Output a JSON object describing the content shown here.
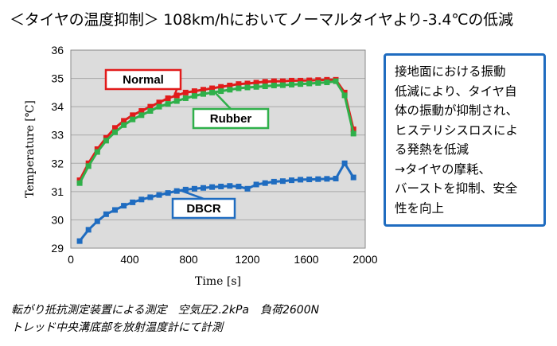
{
  "title": "＜タイヤの温度抑制＞ 108km/hにおいてノーマルタイヤより-3.4℃の低減",
  "note_lines": [
    "接地面における振動",
    "低減により、タイヤ自",
    "体の振動が抑制され、",
    "ヒステリシスロスによ",
    "る発熱を低減",
    "→タイヤの摩耗、",
    "バーストを抑制、安全",
    "性を向上"
  ],
  "footer": [
    "転がり抵抗測定装置による測定　空気圧2.2kPa　負荷2600N",
    "トレッド中央溝底部を放射温度計にて計測"
  ],
  "colors": {
    "normal": "#e11b1b",
    "rubber": "#2fb04a",
    "dbcr": "#1f6cc0",
    "plot_bg": "#dcdcdc",
    "note_border": "#1f6cc0"
  },
  "chart_data": {
    "type": "line",
    "xlabel": "Time [s]",
    "ylabel": "Temperature [℃]",
    "xlim": [
      0,
      2000
    ],
    "ylim": [
      29,
      36
    ],
    "xticks": [
      0,
      400,
      800,
      1200,
      1600,
      2000
    ],
    "yticks": [
      29,
      30,
      31,
      32,
      33,
      34,
      35,
      36
    ],
    "grid": "horizontal",
    "series": [
      {
        "name": "Normal",
        "color": "#e11b1b",
        "points": [
          [
            60,
            31.4
          ],
          [
            120,
            32.0
          ],
          [
            180,
            32.5
          ],
          [
            240,
            32.9
          ],
          [
            300,
            33.25
          ],
          [
            360,
            33.5
          ],
          [
            420,
            33.7
          ],
          [
            480,
            33.85
          ],
          [
            540,
            34.0
          ],
          [
            600,
            34.15
          ],
          [
            660,
            34.3
          ],
          [
            720,
            34.4
          ],
          [
            780,
            34.5
          ],
          [
            840,
            34.55
          ],
          [
            900,
            34.6
          ],
          [
            960,
            34.65
          ],
          [
            1020,
            34.7
          ],
          [
            1080,
            34.75
          ],
          [
            1140,
            34.8
          ],
          [
            1200,
            34.82
          ],
          [
            1260,
            34.85
          ],
          [
            1320,
            34.88
          ],
          [
            1380,
            34.9
          ],
          [
            1440,
            34.9
          ],
          [
            1500,
            34.92
          ],
          [
            1560,
            34.92
          ],
          [
            1620,
            34.93
          ],
          [
            1680,
            34.94
          ],
          [
            1740,
            34.95
          ],
          [
            1800,
            34.95
          ],
          [
            1860,
            34.5
          ],
          [
            1920,
            33.2
          ]
        ]
      },
      {
        "name": "Rubber",
        "color": "#2fb04a",
        "points": [
          [
            60,
            31.3
          ],
          [
            120,
            31.9
          ],
          [
            180,
            32.4
          ],
          [
            240,
            32.8
          ],
          [
            300,
            33.1
          ],
          [
            360,
            33.35
          ],
          [
            420,
            33.55
          ],
          [
            480,
            33.7
          ],
          [
            540,
            33.85
          ],
          [
            600,
            34.0
          ],
          [
            660,
            34.1
          ],
          [
            720,
            34.2
          ],
          [
            780,
            34.3
          ],
          [
            840,
            34.38
          ],
          [
            900,
            34.45
          ],
          [
            960,
            34.5
          ],
          [
            1020,
            34.55
          ],
          [
            1080,
            34.6
          ],
          [
            1140,
            34.65
          ],
          [
            1200,
            34.68
          ],
          [
            1260,
            34.7
          ],
          [
            1320,
            34.72
          ],
          [
            1380,
            34.75
          ],
          [
            1440,
            34.76
          ],
          [
            1500,
            34.78
          ],
          [
            1560,
            34.8
          ],
          [
            1620,
            34.82
          ],
          [
            1680,
            34.84
          ],
          [
            1740,
            34.86
          ],
          [
            1800,
            34.9
          ],
          [
            1860,
            34.4
          ],
          [
            1920,
            33.05
          ]
        ]
      },
      {
        "name": "DBCR",
        "color": "#1f6cc0",
        "points": [
          [
            60,
            29.25
          ],
          [
            120,
            29.65
          ],
          [
            180,
            29.95
          ],
          [
            240,
            30.2
          ],
          [
            300,
            30.35
          ],
          [
            360,
            30.5
          ],
          [
            420,
            30.62
          ],
          [
            480,
            30.72
          ],
          [
            540,
            30.8
          ],
          [
            600,
            30.88
          ],
          [
            660,
            30.95
          ],
          [
            720,
            31.02
          ],
          [
            780,
            31.07
          ],
          [
            840,
            31.1
          ],
          [
            900,
            31.13
          ],
          [
            960,
            31.16
          ],
          [
            1020,
            31.18
          ],
          [
            1080,
            31.2
          ],
          [
            1140,
            31.18
          ],
          [
            1200,
            31.1
          ],
          [
            1260,
            31.25
          ],
          [
            1320,
            31.3
          ],
          [
            1380,
            31.35
          ],
          [
            1440,
            31.37
          ],
          [
            1500,
            31.4
          ],
          [
            1560,
            31.42
          ],
          [
            1620,
            31.43
          ],
          [
            1680,
            31.44
          ],
          [
            1740,
            31.45
          ],
          [
            1800,
            31.46
          ],
          [
            1860,
            32.0
          ],
          [
            1920,
            31.5
          ]
        ]
      }
    ]
  }
}
